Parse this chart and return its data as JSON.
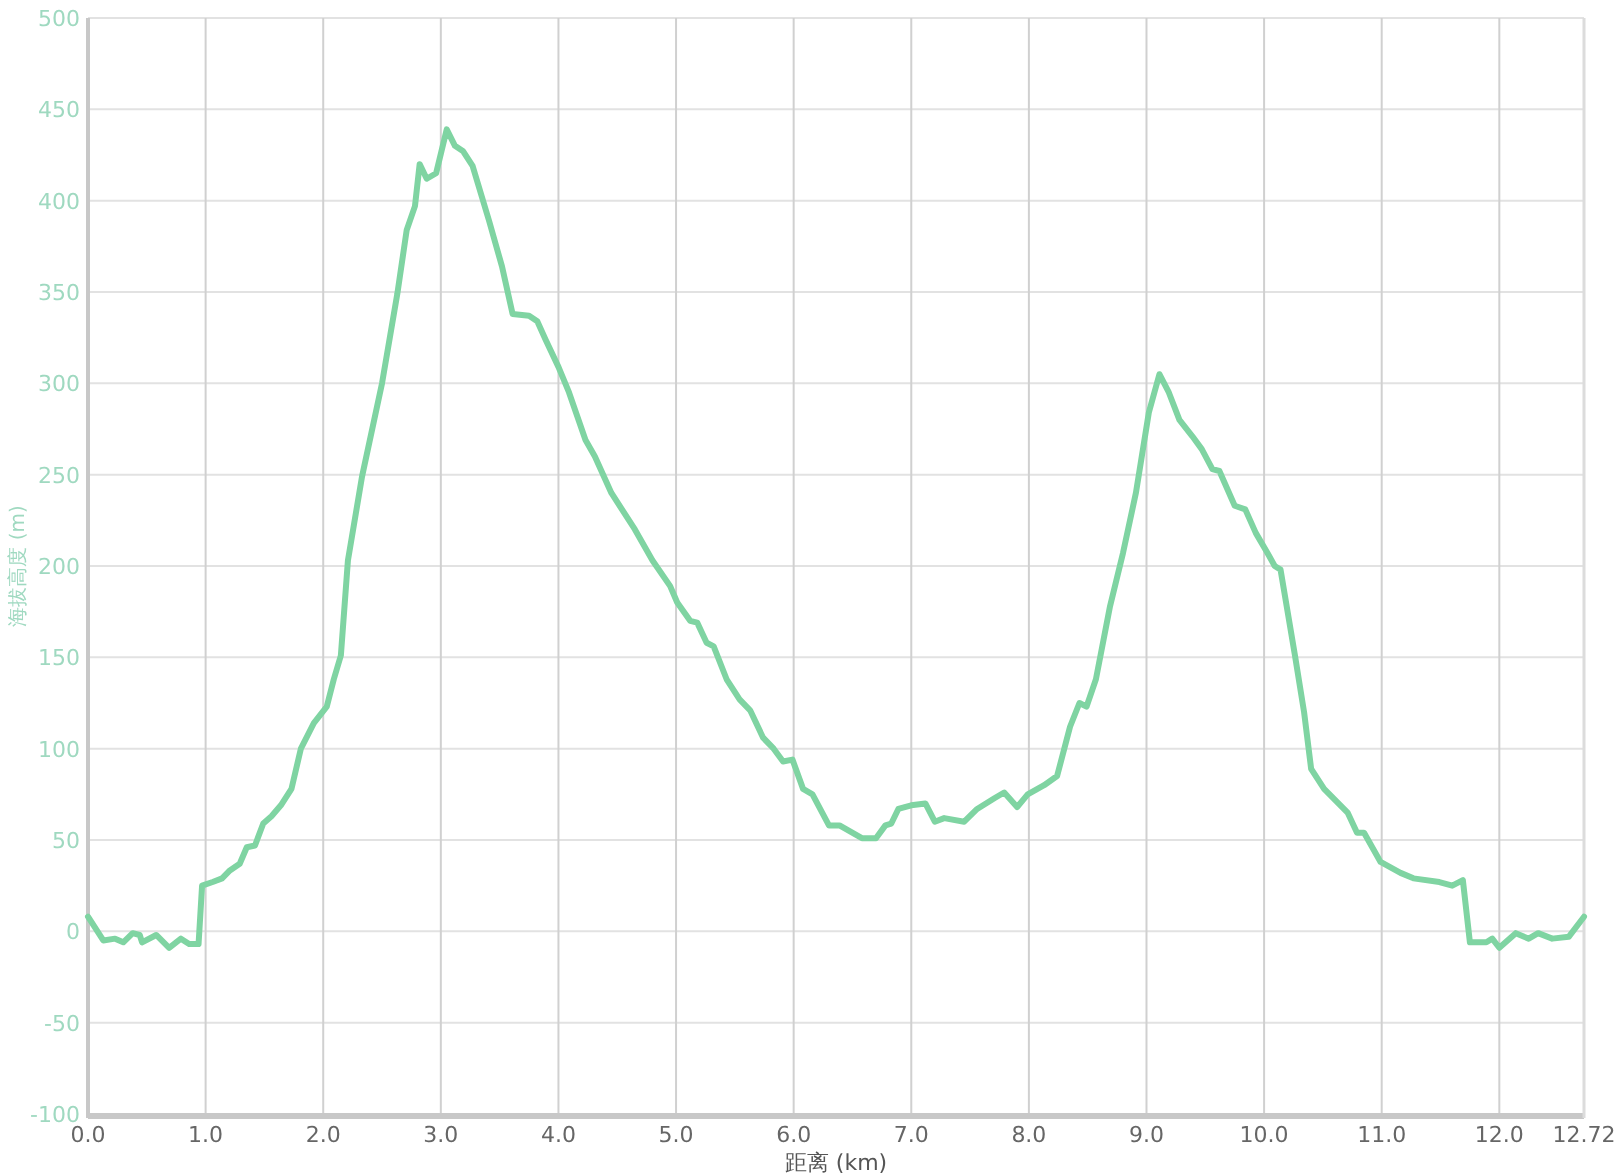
{
  "chart_data": {
    "type": "line",
    "xlabel": "距离 (km)",
    "ylabel": "海拔高度 (m)",
    "xlim": [
      0,
      12.72
    ],
    "ylim": [
      -100,
      500
    ],
    "xticks": [
      {
        "value": 0,
        "label": "0.0"
      },
      {
        "value": 1,
        "label": "1.0"
      },
      {
        "value": 2,
        "label": "2.0"
      },
      {
        "value": 3,
        "label": "3.0"
      },
      {
        "value": 4,
        "label": "4.0"
      },
      {
        "value": 5,
        "label": "5.0"
      },
      {
        "value": 6,
        "label": "6.0"
      },
      {
        "value": 7,
        "label": "7.0"
      },
      {
        "value": 8,
        "label": "8.0"
      },
      {
        "value": 9,
        "label": "9.0"
      },
      {
        "value": 10,
        "label": "10.0"
      },
      {
        "value": 11,
        "label": "11.0"
      },
      {
        "value": 12,
        "label": "12.0"
      },
      {
        "value": 12.72,
        "label": "12.72"
      }
    ],
    "yticks": [
      -100,
      -50,
      0,
      50,
      100,
      150,
      200,
      250,
      300,
      350,
      400,
      450,
      500
    ],
    "grid": true,
    "series": [
      {
        "color": "#7fd4a2",
        "x": [
          0,
          0.13,
          0.23,
          0.3,
          0.38,
          0.44,
          0.46,
          0.58,
          0.69,
          0.79,
          0.86,
          0.94,
          0.97,
          1.06,
          1.14,
          1.2,
          1.29,
          1.35,
          1.42,
          1.49,
          1.56,
          1.64,
          1.73,
          1.81,
          1.92,
          2.03,
          2.09,
          2.15,
          2.21,
          2.33,
          2.5,
          2.63,
          2.71,
          2.78,
          2.82,
          2.88,
          2.96,
          3.05,
          3.12,
          3.19,
          3.27,
          3.41,
          3.52,
          3.61,
          3.75,
          3.82,
          3.89,
          4.0,
          4.09,
          4.23,
          4.31,
          4.45,
          4.65,
          4.8,
          4.95,
          5.01,
          5.12,
          5.18,
          5.26,
          5.32,
          5.43,
          5.54,
          5.63,
          5.74,
          5.83,
          5.91,
          5.99,
          6.08,
          6.16,
          6.3,
          6.39,
          6.58,
          6.7,
          6.78,
          6.83,
          6.89,
          7.0,
          7.12,
          7.2,
          7.28,
          7.45,
          7.56,
          7.71,
          7.79,
          7.9,
          7.99,
          8.13,
          8.24,
          8.35,
          8.43,
          8.49,
          8.57,
          8.69,
          8.8,
          8.91,
          9.02,
          9.11,
          9.19,
          9.28,
          9.39,
          9.47,
          9.56,
          9.62,
          9.75,
          9.84,
          9.93,
          10.03,
          10.09,
          10.14,
          10.26,
          10.34,
          10.4,
          10.51,
          10.71,
          10.79,
          10.85,
          10.99,
          11.16,
          11.27,
          11.49,
          11.6,
          11.69,
          11.75,
          11.89,
          11.94,
          12.0,
          12.14,
          12.25,
          12.33,
          12.45,
          12.59,
          12.72
        ],
        "values": [
          8,
          -5,
          -4,
          -6,
          -1,
          -2,
          -6,
          -2,
          -9,
          -4,
          -7,
          -7,
          25,
          27,
          29,
          33,
          37,
          46,
          47,
          59,
          63,
          69,
          78,
          100,
          114,
          123,
          138,
          151,
          203,
          249,
          300,
          349,
          384,
          397,
          420,
          412,
          415,
          439,
          430,
          427,
          419,
          389,
          364,
          338,
          337,
          334,
          324,
          309,
          295,
          269,
          260,
          240,
          220,
          203,
          189,
          180,
          170,
          169,
          158,
          156,
          138,
          127,
          121,
          106,
          100,
          93,
          94,
          78,
          75,
          58,
          58,
          51,
          51,
          58,
          59,
          67,
          69,
          70,
          60,
          62,
          60,
          67,
          73,
          76,
          68,
          75,
          80,
          85,
          112,
          125,
          123,
          138,
          178,
          207,
          240,
          284,
          305,
          295,
          280,
          271,
          264,
          253,
          252,
          233,
          231,
          218,
          207,
          200,
          198,
          152,
          120,
          89,
          78,
          65,
          54,
          54,
          38,
          32,
          29,
          27,
          25,
          28,
          -6,
          -6,
          -4,
          -9,
          -1,
          -4,
          -1,
          -4,
          -3,
          8
        ]
      }
    ]
  }
}
